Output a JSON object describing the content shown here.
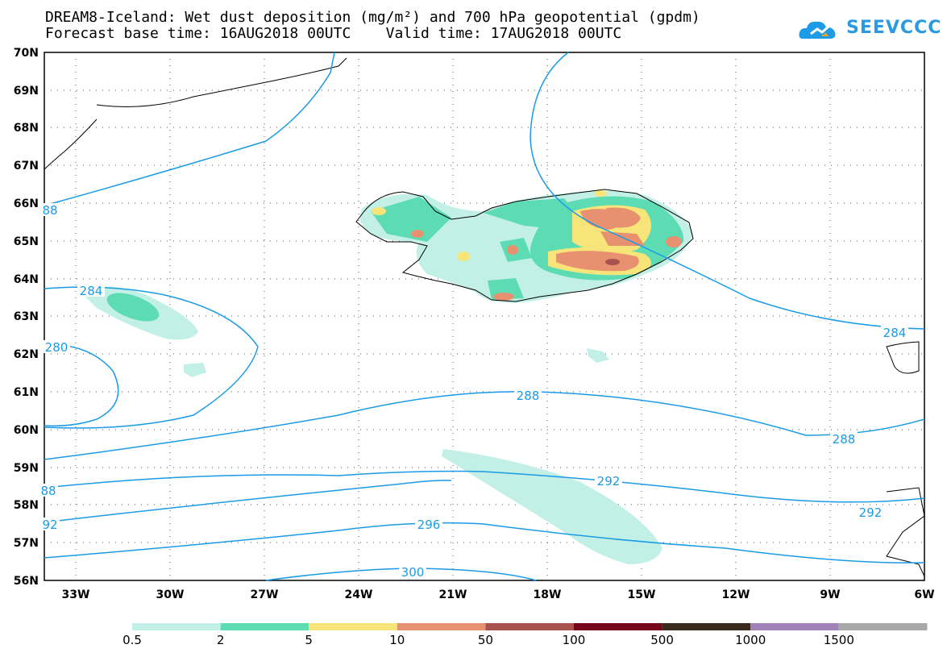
{
  "header": {
    "title_line1": "DREAM8-Iceland: Wet dust deposition (mg/m²) and 700 hPa geopotential (gpdm)",
    "title_line2": "Forecast base time: 16AUG2018 00UTC    Valid time: 17AUG2018 00UTC"
  },
  "logo": {
    "text": "SEEVCCC",
    "icon": "cloud-icon",
    "color": "#1e9be6"
  },
  "map": {
    "lon_labels": [
      "33W",
      "30W",
      "27W",
      "24W",
      "21W",
      "18W",
      "15W",
      "12W",
      "9W",
      "6W"
    ],
    "lat_labels": [
      "70N",
      "69N",
      "68N",
      "67N",
      "66N",
      "65N",
      "64N",
      "63N",
      "62N",
      "61N",
      "60N",
      "59N",
      "58N",
      "57N",
      "56N"
    ],
    "contour_color": "#1a9be6",
    "contour_labels": [
      {
        "text": "88"
      },
      {
        "text": "284"
      },
      {
        "text": "280"
      },
      {
        "text": "288"
      },
      {
        "text": "288"
      },
      {
        "text": "284"
      },
      {
        "text": "88"
      },
      {
        "text": "292"
      },
      {
        "text": "92"
      },
      {
        "text": "292"
      },
      {
        "text": "296"
      },
      {
        "text": "300"
      }
    ]
  },
  "legend": {
    "labels": [
      "0.5",
      "2",
      "5",
      "10",
      "50",
      "100",
      "500",
      "1000",
      "1500"
    ],
    "colors": [
      "#c2f0e6",
      "#5ddcb4",
      "#f8e57a",
      "#e89170",
      "#a8524e",
      "#78051e",
      "#3a2a1e",
      "#a082b8",
      "#a8a8a8"
    ]
  }
}
